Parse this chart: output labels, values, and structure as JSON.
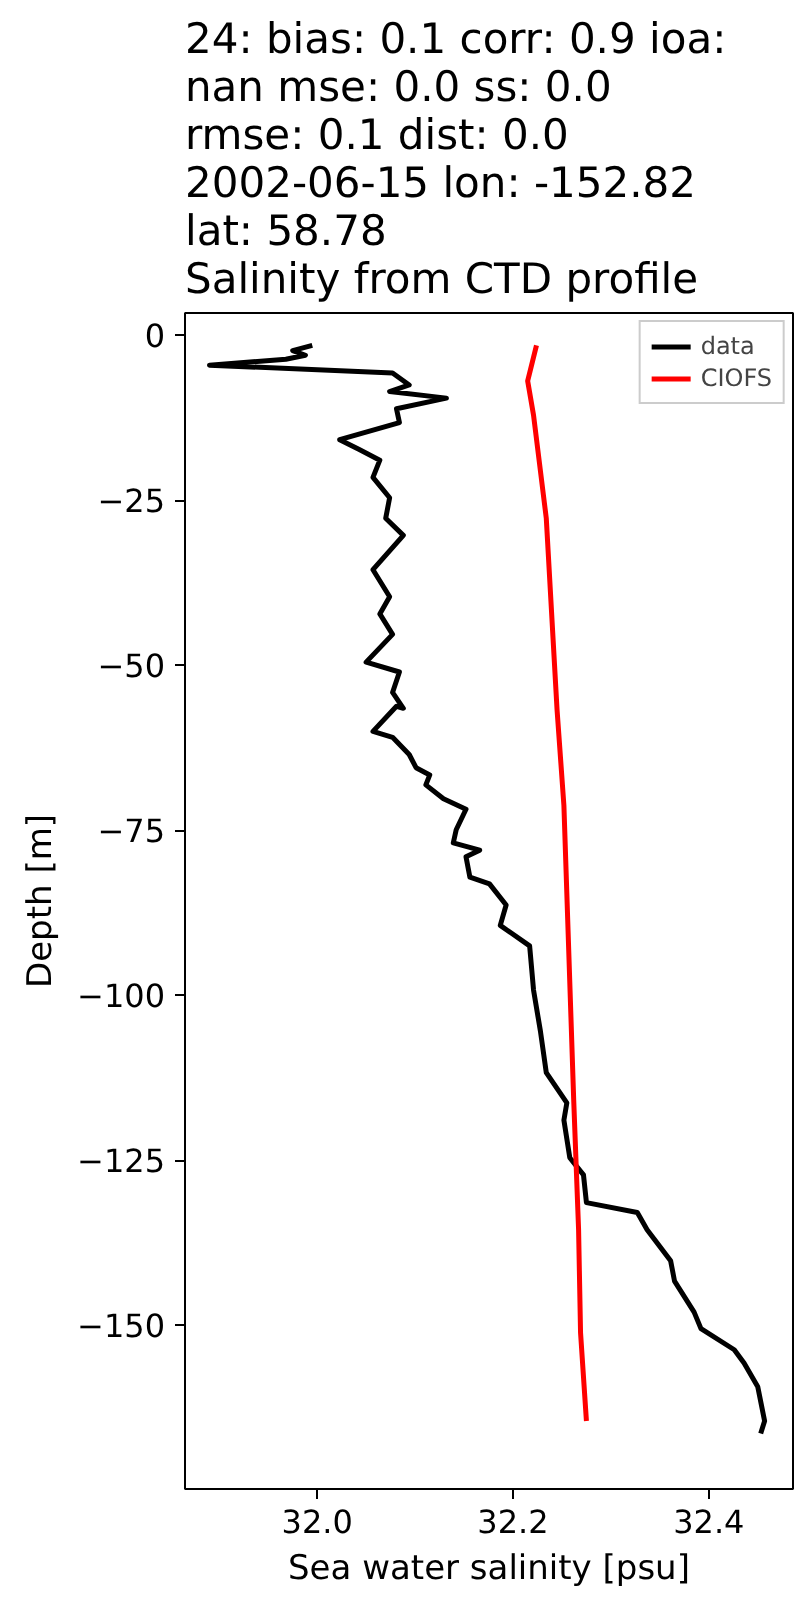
{
  "chart_data": {
    "type": "line",
    "title": "24: bias: 0.1  corr: 0.9  ioa:\nnan  mse: 0.0  ss: 0.0\nrmse: 0.1  dist: 0.0\n2002-06-15 lon: -152.82\nlat: 58.78\nSalinity from CTD profile",
    "xlabel": "Sea water salinity [psu]",
    "ylabel": "Depth [m]",
    "xlim": [
      31.865,
      32.486
    ],
    "ylim": [
      -174.8,
      3.4
    ],
    "xticks": [
      {
        "value": 32.0,
        "label": "32.0"
      },
      {
        "value": 32.2,
        "label": "32.2"
      },
      {
        "value": 32.4,
        "label": "32.4"
      }
    ],
    "yticks": [
      0,
      {
        "value": -25,
        "label": "−25"
      },
      {
        "value": -50,
        "label": "−50"
      },
      {
        "value": -75,
        "label": "−75"
      },
      {
        "value": -100,
        "label": "−100"
      },
      {
        "value": -125,
        "label": "−125"
      },
      {
        "value": -150,
        "label": "−150"
      }
    ],
    "grid": false,
    "legend": "top right",
    "marker": "none",
    "line_style": "solid",
    "series": [
      {
        "name": "data",
        "color": "#000000",
        "x": [
          31.995,
          31.975,
          31.988,
          31.968,
          31.89,
          32.077,
          32.094,
          32.074,
          32.132,
          32.081,
          32.084,
          32.023,
          32.043,
          32.064,
          32.057,
          32.074,
          32.07,
          32.088,
          32.057,
          32.074,
          32.064,
          32.077,
          32.05,
          32.084,
          32.077,
          32.088,
          32.081,
          32.057,
          32.077,
          32.094,
          32.101,
          32.115,
          32.111,
          32.129,
          32.152,
          32.142,
          32.139,
          32.166,
          32.152,
          32.156,
          32.176,
          32.193,
          32.187,
          32.217,
          32.221,
          32.228,
          32.234,
          32.255,
          32.252,
          32.258,
          32.272,
          32.275,
          32.327,
          32.337,
          32.361,
          32.365,
          32.385,
          32.392,
          32.426,
          32.436,
          32.45,
          32.457,
          32.453
        ],
        "values": [
          -1.5,
          -2.3,
          -3,
          -3.6,
          -4.5,
          -5.7,
          -7.5,
          -8.5,
          -9.5,
          -11.1,
          -13.2,
          -15.8,
          -17.3,
          -18.9,
          -21.5,
          -24.6,
          -27.7,
          -30.3,
          -35.5,
          -39.6,
          -42.2,
          -45.3,
          -49.5,
          -51,
          -54.1,
          -56.5,
          -56.2,
          -60,
          -60.9,
          -63.5,
          -65.5,
          -66.6,
          -68.1,
          -70.2,
          -71.8,
          -74.9,
          -76.9,
          -78,
          -79,
          -82.1,
          -83.1,
          -86.3,
          -89.4,
          -92.5,
          -99.2,
          -105.4,
          -111.7,
          -116.3,
          -118.9,
          -124.6,
          -127.2,
          -131.4,
          -132.9,
          -135.5,
          -140.2,
          -143.3,
          -148,
          -150.5,
          -153.7,
          -155.7,
          -159.3,
          -164.5,
          -166.4
        ]
      },
      {
        "name": "CIOFS",
        "color": "#ff0000",
        "x": [
          32.224,
          32.215,
          32.221,
          32.234,
          32.245,
          32.252,
          32.262,
          32.267,
          32.269,
          32.275
        ],
        "values": [
          -1.5,
          -6.9,
          -12.1,
          -27.7,
          -56.7,
          -71.2,
          -115.8,
          -135.5,
          -151.1,
          -164.5
        ]
      }
    ]
  }
}
